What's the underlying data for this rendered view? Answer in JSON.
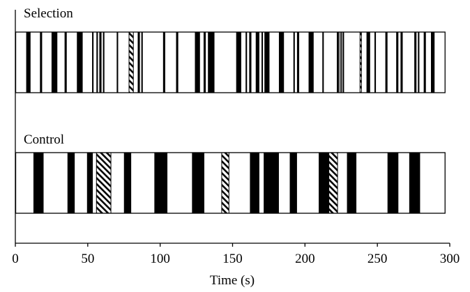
{
  "chart_data": {
    "type": "event-raster",
    "xlabel": "Time (s)",
    "xlim": [
      0,
      300
    ],
    "xticks": [
      0,
      50,
      100,
      150,
      200,
      250,
      300
    ],
    "grid": false,
    "legend": "none",
    "panels": [
      {
        "name": "Selection",
        "events": [
          {
            "start": 7.5,
            "end": 10.5,
            "style": "solid"
          },
          {
            "start": 17.0,
            "end": 18.5,
            "style": "solid"
          },
          {
            "start": 25.0,
            "end": 29.0,
            "style": "solid"
          },
          {
            "start": 34.0,
            "end": 35.5,
            "style": "solid"
          },
          {
            "start": 42.5,
            "end": 46.5,
            "style": "solid"
          },
          {
            "start": 53.0,
            "end": 54.0,
            "style": "solid"
          },
          {
            "start": 56.0,
            "end": 57.0,
            "style": "solid"
          },
          {
            "start": 58.0,
            "end": 59.5,
            "style": "solid"
          },
          {
            "start": 60.5,
            "end": 61.5,
            "style": "solid"
          },
          {
            "start": 70.0,
            "end": 71.0,
            "style": "solid"
          },
          {
            "start": 78.5,
            "end": 81.5,
            "style": "hatched"
          },
          {
            "start": 84.5,
            "end": 86.0,
            "style": "solid"
          },
          {
            "start": 87.0,
            "end": 88.0,
            "style": "solid"
          },
          {
            "start": 102.0,
            "end": 103.5,
            "style": "solid"
          },
          {
            "start": 111.0,
            "end": 112.5,
            "style": "solid"
          },
          {
            "start": 124.0,
            "end": 127.5,
            "style": "solid"
          },
          {
            "start": 130.0,
            "end": 131.5,
            "style": "solid"
          },
          {
            "start": 133.0,
            "end": 137.5,
            "style": "solid"
          },
          {
            "start": 152.5,
            "end": 156.0,
            "style": "solid"
          },
          {
            "start": 159.0,
            "end": 160.0,
            "style": "solid"
          },
          {
            "start": 161.5,
            "end": 163.0,
            "style": "solid"
          },
          {
            "start": 166.0,
            "end": 168.5,
            "style": "solid"
          },
          {
            "start": 170.0,
            "end": 171.0,
            "style": "solid"
          },
          {
            "start": 172.0,
            "end": 175.5,
            "style": "solid"
          },
          {
            "start": 182.0,
            "end": 185.5,
            "style": "solid"
          },
          {
            "start": 192.0,
            "end": 193.0,
            "style": "solid"
          },
          {
            "start": 194.5,
            "end": 196.0,
            "style": "solid"
          },
          {
            "start": 202.5,
            "end": 206.0,
            "style": "solid"
          },
          {
            "start": 212.0,
            "end": 213.0,
            "style": "solid"
          },
          {
            "start": 222.0,
            "end": 223.5,
            "style": "solid"
          },
          {
            "start": 224.0,
            "end": 224.5,
            "style": "solid"
          },
          {
            "start": 224.8,
            "end": 225.5,
            "style": "solid"
          },
          {
            "start": 226.0,
            "end": 227.0,
            "style": "solid"
          },
          {
            "start": 238.0,
            "end": 239.0,
            "style": "hatched"
          },
          {
            "start": 242.5,
            "end": 245.0,
            "style": "solid"
          },
          {
            "start": 248.0,
            "end": 249.0,
            "style": "solid"
          },
          {
            "start": 255.5,
            "end": 257.0,
            "style": "solid"
          },
          {
            "start": 263.0,
            "end": 264.5,
            "style": "solid"
          },
          {
            "start": 266.0,
            "end": 267.5,
            "style": "solid"
          },
          {
            "start": 275.5,
            "end": 277.0,
            "style": "solid"
          },
          {
            "start": 278.0,
            "end": 279.0,
            "style": "solid"
          },
          {
            "start": 282.0,
            "end": 283.5,
            "style": "solid"
          },
          {
            "start": 287.0,
            "end": 289.5,
            "style": "solid"
          }
        ]
      },
      {
        "name": "Control",
        "events": [
          {
            "start": 12.5,
            "end": 19.5,
            "style": "solid"
          },
          {
            "start": 36.0,
            "end": 41.0,
            "style": "solid"
          },
          {
            "start": 49.5,
            "end": 53.5,
            "style": "solid"
          },
          {
            "start": 56.0,
            "end": 66.0,
            "style": "hatched"
          },
          {
            "start": 75.0,
            "end": 80.0,
            "style": "solid"
          },
          {
            "start": 96.0,
            "end": 105.0,
            "style": "solid"
          },
          {
            "start": 122.0,
            "end": 130.5,
            "style": "solid"
          },
          {
            "start": 142.5,
            "end": 147.5,
            "style": "hatched"
          },
          {
            "start": 162.0,
            "end": 168.5,
            "style": "solid"
          },
          {
            "start": 171.5,
            "end": 182.0,
            "style": "solid"
          },
          {
            "start": 189.5,
            "end": 194.5,
            "style": "solid"
          },
          {
            "start": 209.5,
            "end": 216.5,
            "style": "solid"
          },
          {
            "start": 216.5,
            "end": 222.5,
            "style": "hatched"
          },
          {
            "start": 229.0,
            "end": 235.5,
            "style": "solid"
          },
          {
            "start": 257.0,
            "end": 264.5,
            "style": "solid"
          },
          {
            "start": 272.0,
            "end": 279.5,
            "style": "solid"
          }
        ]
      }
    ],
    "styles": {
      "solid": "#000000",
      "hatched": "diagonal-stripes",
      "background": "#ffffff"
    }
  }
}
